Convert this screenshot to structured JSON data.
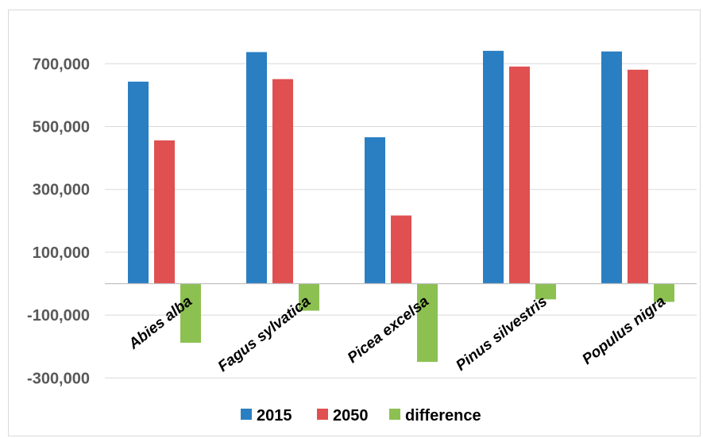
{
  "chart_data": {
    "type": "bar",
    "title": "",
    "xlabel": "",
    "ylabel": "",
    "categories": [
      "Abies alba",
      "Fagus sylvatica",
      "Picea excelsa",
      "Pinus silvestris",
      "Populus nigra"
    ],
    "series": [
      {
        "name": "2015",
        "color": "#2a7fc3",
        "values": [
          643000,
          737000,
          466000,
          741000,
          739000
        ]
      },
      {
        "name": "2050",
        "color": "#e05050",
        "values": [
          456000,
          651000,
          217000,
          691000,
          681000
        ]
      },
      {
        "name": "difference",
        "color": "#8cc152",
        "values": [
          -188000,
          -86000,
          -249000,
          -50000,
          -58000
        ]
      }
    ],
    "ylim": [
      -350000,
      800000
    ],
    "yticks": [
      -300000,
      -100000,
      100000,
      300000,
      500000,
      700000
    ],
    "ytick_labels": [
      "-300,000",
      "-100,000",
      "100,000",
      "300,000",
      "500,000",
      "700,000"
    ],
    "grid": true,
    "legend_position": "bottom"
  }
}
